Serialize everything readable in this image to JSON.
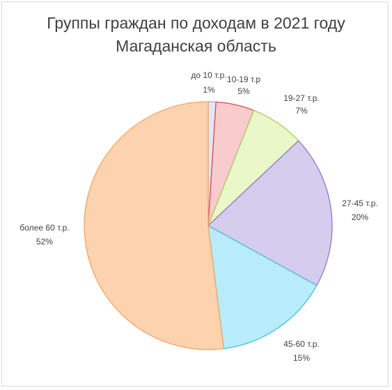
{
  "chart_data": {
    "type": "pie",
    "title": "Группы граждан по доходам в 2021 году",
    "subtitle": "Магаданская область",
    "categories": [
      "до 10 т.р.",
      "10-19 т.р",
      "19-27 т.р.",
      "27-45 т.р.",
      "45-60 т.р.",
      "более 60 т.р."
    ],
    "values": [
      1,
      5,
      7,
      20,
      15,
      52
    ],
    "labels": [
      "1%",
      "5%",
      "7%",
      "20%",
      "15%",
      "52%"
    ],
    "colors": [
      {
        "fill": "#e3e6f6",
        "stroke": "#9fa8d6"
      },
      {
        "fill": "#f8cccc",
        "stroke": "#d94c4c"
      },
      {
        "fill": "#eaf7c8",
        "stroke": "#a9cf5a"
      },
      {
        "fill": "#d6cdee",
        "stroke": "#8c79c4"
      },
      {
        "fill": "#b8ecfb",
        "stroke": "#4cbde5"
      },
      {
        "fill": "#fdd2ae",
        "stroke": "#f2a463"
      }
    ],
    "legend": "none"
  }
}
